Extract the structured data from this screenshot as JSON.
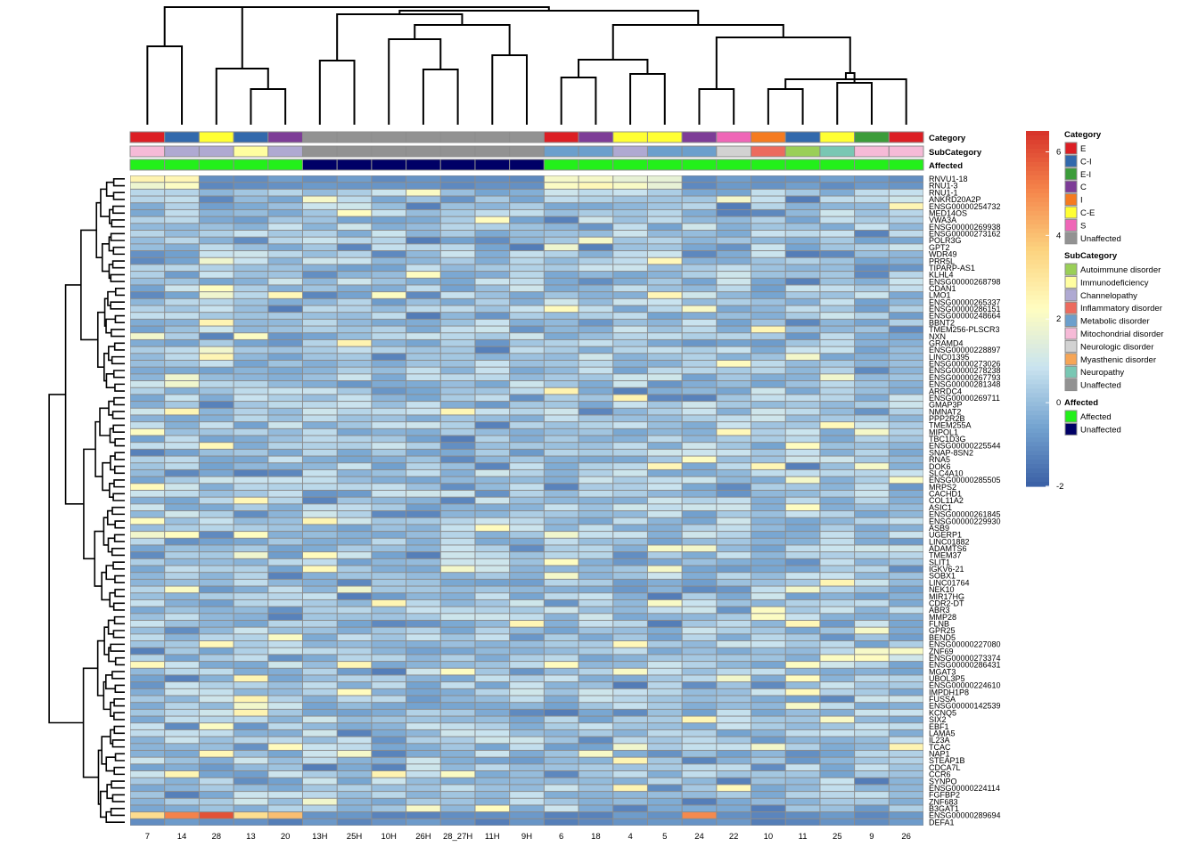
{
  "chart_data": {
    "type": "heatmap",
    "title": "",
    "columns": [
      "7",
      "14",
      "28",
      "13",
      "20",
      "13H",
      "25H",
      "10H",
      "26H",
      "28_27H",
      "11H",
      "9H",
      "6",
      "18",
      "4",
      "5",
      "24",
      "22",
      "10",
      "11",
      "25",
      "9",
      "26"
    ],
    "annotation_rows": [
      "Category",
      "SubCategory",
      "Affected"
    ],
    "annotations": {
      "Category": [
        "E",
        "C-I",
        "C-E",
        "C-I",
        "C",
        "Unaffected",
        "Unaffected",
        "Unaffected",
        "Unaffected",
        "Unaffected",
        "Unaffected",
        "Unaffected",
        "E",
        "C",
        "C-E",
        "C-E",
        "C",
        "S",
        "I",
        "C-I",
        "C-E",
        "E-I",
        "E"
      ],
      "SubCategory": [
        "Mitochondrial disorder",
        "Channelopathy",
        "Channelopathy",
        "Immunodeficiency",
        "Channelopathy",
        "Unaffected",
        "Unaffected",
        "Unaffected",
        "Unaffected",
        "Unaffected",
        "Unaffected",
        "Unaffected",
        "Metabolic disorder",
        "Metabolic disorder",
        "Channelopathy",
        "Metabolic disorder",
        "Metabolic disorder",
        "Neurologic disorder",
        "Inflammatory disorder",
        "Autoimmune disorder",
        "Neuropathy",
        "Mitochondrial disorder",
        "Mitochondrial disorder"
      ],
      "Affected": [
        "Affected",
        "Affected",
        "Affected",
        "Affected",
        "Affected",
        "Unaffected",
        "Unaffected",
        "Unaffected",
        "Unaffected",
        "Unaffected",
        "Unaffected",
        "Unaffected",
        "Affected",
        "Affected",
        "Affected",
        "Affected",
        "Affected",
        "Affected",
        "Affected",
        "Affected",
        "Affected",
        "Affected",
        "Affected"
      ]
    },
    "row_labels": [
      "RNVU1-18",
      "RNU1-3",
      "RNU1-1",
      "ANKRD20A2P",
      "ENSG00000254732",
      "MED14OS",
      "VWA3A",
      "ENSG00000269938",
      "ENSG00000273162",
      "POLR3G",
      "GPT2",
      "WDR49",
      "PRR5L",
      "TIPARP-AS1",
      "KLHL4",
      "ENSG00000268798",
      "CDAN1",
      "LMO1",
      "ENSG00000265337",
      "ENSG00000286151",
      "ENSG00000248664",
      "BBNT2",
      "TMEM256-PLSCR3",
      "NXN",
      "GRAMD4",
      "ENSG00000228897",
      "LINC01395",
      "ENSG00000273026",
      "ENSG00000278238",
      "ENSG00000267793",
      "ENSG00000281348",
      "ARRDC4",
      "ENSG00000269711",
      "GMAP3P",
      "NMNAT2",
      "PPP2R2B",
      "TMEM255A",
      "MIPOL1",
      "TBC1D3G",
      "ENSG00000225544",
      "SNAP-8SN2",
      "RNA5",
      "DOK6",
      "SLC4A10",
      "ENSG00000285505",
      "MRPS2",
      "CACHD1",
      "COL11A2",
      "ASIC1",
      "ENSG00000261845",
      "ENSG00000229930",
      "ASB9",
      "UGERP1",
      "LINC01882",
      "ADAMTS6",
      "TMEM37",
      "SLIT1",
      "IGKV6-21",
      "SOBX1",
      "LINC01764",
      "NEK10",
      "MIR17HG",
      "CDR2-DT",
      "ABR3",
      "MMP28",
      "FLNB",
      "GPR25",
      "BEND5",
      "ENSG00000227080",
      "ZNF69",
      "ENSG00000273374",
      "ENSG00000286431",
      "MGAT3",
      "UBOL3P5",
      "ENSG00000224610",
      "IMPDH1P8",
      "FUSSA",
      "ENSG00000142539",
      "KCNQ5",
      "SIX2",
      "EBF1",
      "LAMA5",
      "IL23A",
      "TCAC",
      "NAP1",
      "STEAP1B",
      "CDCA7L",
      "CCR6",
      "SYNPO",
      "ENSG00000224114",
      "FGFBP2",
      "ZNF683",
      "B3GAT1",
      "ENSG00000289694",
      "DEFA1"
    ],
    "color_scale": {
      "min": -2,
      "max": 6.5,
      "ticks": [
        -2,
        0,
        2,
        4,
        6
      ],
      "colors": [
        "#3a5fa5",
        "#74a3d0",
        "#c9e3ef",
        "#fffdc0",
        "#fcd27e",
        "#f5854b",
        "#d7322a"
      ]
    },
    "legend_placement": "right"
  },
  "legends": {
    "category": {
      "title": "Category",
      "items": [
        {
          "label": "E",
          "color": "#dc1e24"
        },
        {
          "label": "C-I",
          "color": "#3269ac"
        },
        {
          "label": "E-I",
          "color": "#3c9c3a"
        },
        {
          "label": "C",
          "color": "#7d3c97"
        },
        {
          "label": "I",
          "color": "#f57b20"
        },
        {
          "label": "C-E",
          "color": "#ffff33"
        },
        {
          "label": "S",
          "color": "#ef66b7"
        },
        {
          "label": "Unaffected",
          "color": "#929292"
        }
      ]
    },
    "subcategory": {
      "title": "SubCategory",
      "items": [
        {
          "label": "Autoimmune disorder",
          "color": "#9acf57"
        },
        {
          "label": "Immunodeficiency",
          "color": "#fffea0"
        },
        {
          "label": "Channelopathy",
          "color": "#afa9d2"
        },
        {
          "label": "Inflammatory disorder",
          "color": "#ec6b5e"
        },
        {
          "label": "Metabolic disorder",
          "color": "#6c9fcc"
        },
        {
          "label": "Mitochondrial disorder",
          "color": "#f6bad7"
        },
        {
          "label": "Neurologic disorder",
          "color": "#d2d2d2"
        },
        {
          "label": "Myasthenic disorder",
          "color": "#f6a556"
        },
        {
          "label": "Neuropathy",
          "color": "#79c7b3"
        },
        {
          "label": "Unaffected",
          "color": "#929292"
        }
      ]
    },
    "affected": {
      "title": "Affected",
      "items": [
        {
          "label": "Affected",
          "color": "#23f01a"
        },
        {
          "label": "Unaffected",
          "color": "#000066"
        }
      ]
    }
  }
}
